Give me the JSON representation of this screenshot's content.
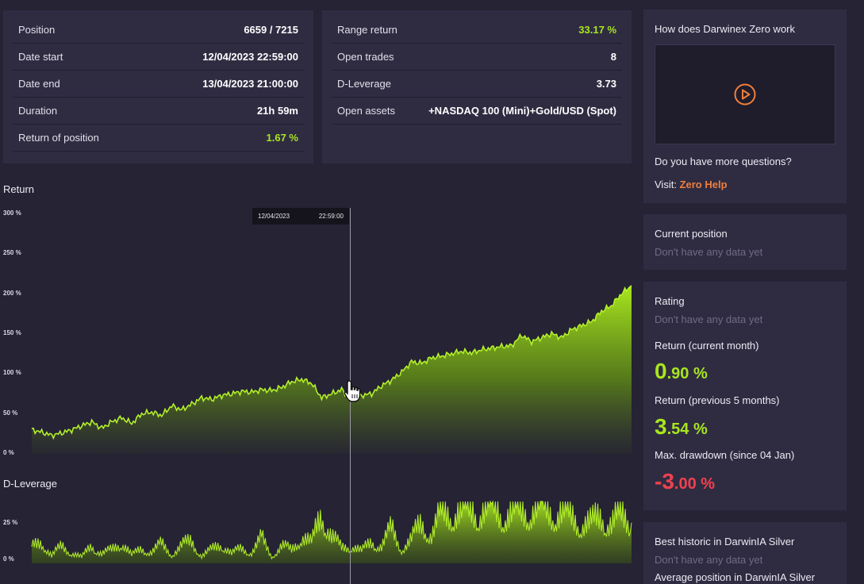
{
  "stats_left": [
    {
      "label": "Position",
      "value": "6659 / 7215"
    },
    {
      "label": "Date start",
      "value": "12/04/2023 22:59:00"
    },
    {
      "label": "Date end",
      "value": "13/04/2023 21:00:00"
    },
    {
      "label": "Duration",
      "value": "21h 59m"
    },
    {
      "label": "Return of position",
      "value": "1.67 %"
    }
  ],
  "stats_right": [
    {
      "label": "Range return",
      "value": "33.17 %"
    },
    {
      "label": "Open trades",
      "value": "8"
    },
    {
      "label": "D-Leverage",
      "value": "3.73"
    },
    {
      "label": "Open assets",
      "value": "+NASDAQ 100 (Mini)+Gold/USD (Spot)"
    }
  ],
  "colors": {
    "accent_green": "#a8e61e",
    "accent_orange": "#f07f3c",
    "negative_red": "#f2414f",
    "panel_bg": "#2f2c42"
  },
  "return_chart": {
    "title": "Return",
    "y_ticks": [
      "300 %",
      "250 %",
      "200 %",
      "150 %",
      "100 %",
      "50 %",
      "0 %"
    ],
    "tooltip_date": "12/04/2023",
    "tooltip_time": "22:59:00"
  },
  "leverage_chart": {
    "title": "D-Leverage",
    "y_ticks": [
      "25 %",
      "0 %"
    ]
  },
  "chart_data": [
    {
      "type": "area",
      "title": "Return",
      "ylabel": "",
      "ylim": [
        0,
        300
      ],
      "x": [
        0,
        1,
        2,
        3,
        4,
        5,
        6,
        7,
        8,
        9,
        10,
        11,
        12,
        13,
        14,
        15,
        16,
        17,
        18,
        19,
        20,
        21,
        22,
        23,
        24,
        25,
        26,
        27,
        28,
        29,
        30,
        31,
        32,
        33,
        34,
        35,
        36,
        37,
        38,
        39,
        40,
        41,
        42,
        43,
        44,
        45,
        46,
        47,
        48,
        49,
        50,
        51,
        52,
        53,
        54,
        55,
        56,
        57,
        58,
        59,
        60
      ],
      "series": [
        {
          "values": [
            30,
            27,
            23,
            26,
            30,
            35,
            40,
            32,
            40,
            45,
            38,
            50,
            52,
            48,
            60,
            55,
            62,
            70,
            68,
            73,
            75,
            78,
            77,
            80,
            79,
            83,
            90,
            93,
            88,
            70,
            75,
            80,
            68,
            73,
            75,
            85,
            92,
            102,
            115,
            113,
            120,
            122,
            125,
            128,
            126,
            130,
            132,
            134,
            135,
            148,
            140,
            145,
            150,
            145,
            155,
            160,
            165,
            178,
            185,
            200,
            210
          ]
        }
      ],
      "annotations": [
        "12/04/2023 22:59:00"
      ]
    },
    {
      "type": "area",
      "title": "D-Leverage",
      "ylabel": "",
      "ylim": [
        0,
        35
      ],
      "x": [
        0,
        1,
        2,
        3,
        4,
        5,
        6,
        7,
        8,
        9,
        10,
        11,
        12,
        13,
        14,
        15,
        16,
        17,
        18,
        19,
        20,
        21,
        22,
        23,
        24,
        25,
        26,
        27,
        28,
        29,
        30,
        31,
        32,
        33,
        34,
        35,
        36,
        37,
        38,
        39,
        40,
        41,
        42,
        43,
        44,
        45,
        46,
        47,
        48,
        49,
        50,
        51,
        52,
        53,
        54,
        55,
        56,
        57,
        58,
        59,
        60
      ],
      "series": [
        {
          "values": [
            8,
            12,
            4,
            9,
            6,
            3,
            10,
            5,
            7,
            12,
            4,
            8,
            6,
            10,
            5,
            9,
            12,
            4,
            7,
            11,
            5,
            8,
            6,
            13,
            4,
            9,
            7,
            15,
            10,
            28,
            14,
            8,
            10,
            6,
            12,
            9,
            18,
            8,
            12,
            22,
            15,
            26,
            28,
            27,
            29,
            28,
            30,
            27,
            26,
            28,
            29,
            30,
            28,
            27,
            24,
            22,
            20,
            26,
            21,
            25,
            23
          ]
        }
      ]
    }
  ],
  "sidebar": {
    "video_card": {
      "title": "How does Darwinex Zero work",
      "more_questions": "Do you have more questions?",
      "visit_label": "Visit:",
      "help_link": "Zero Help"
    },
    "current_position": {
      "title": "Current position",
      "empty": "Don't have any data yet"
    },
    "rating": {
      "title": "Rating",
      "empty": "Don't have any data yet",
      "return_current_label": "Return (current month)",
      "return_current_int": "0",
      "return_current_dec": ".90 %",
      "return_prev_label": "Return (previous 5 months)",
      "return_prev_int": "3",
      "return_prev_dec": ".54 %",
      "max_dd_label": "Max. drawdown (since 04 Jan)",
      "max_dd_int": "-3",
      "max_dd_dec": ".00 %"
    },
    "best_historic": {
      "title": "Best historic in DarwinIA Silver",
      "empty": "Don't have any data yet",
      "avg_label": "Average position in DarwinIA Silver"
    }
  }
}
